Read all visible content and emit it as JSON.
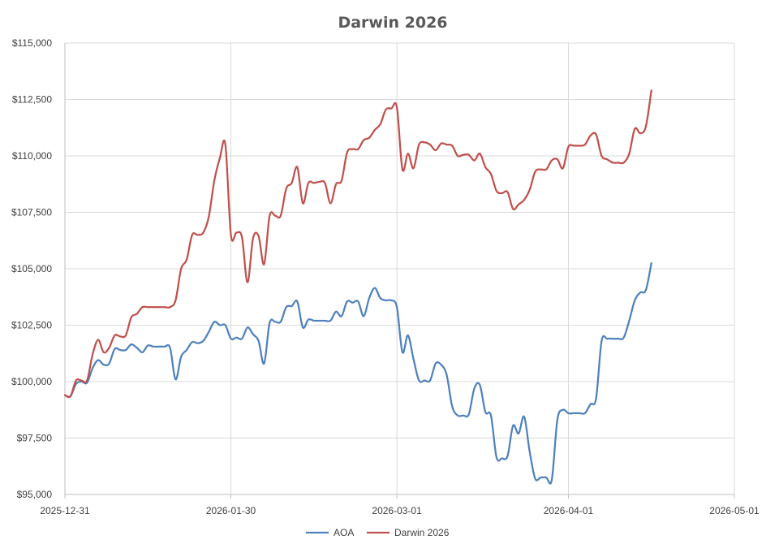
{
  "chart_data": {
    "type": "line",
    "title": "Darwin 2026",
    "xlabel": "",
    "ylabel": "",
    "x_ticks": [
      "2025-12-31",
      "2026-01-30",
      "2026-03-01",
      "2026-04-01",
      "2026-05-01"
    ],
    "x_range": [
      "2025-12-31",
      "2026-05-01"
    ],
    "y_ticks": [
      "$95,000",
      "$97,500",
      "$100,000",
      "$102,500",
      "$105,000",
      "$107,500",
      "$110,000",
      "$112,500",
      "$115,000"
    ],
    "ylim": [
      95000,
      115000
    ],
    "grid": true,
    "legend_position": "bottom",
    "series": [
      {
        "name": "AOA",
        "color": "#4f81bd",
        "points": [
          [
            "2025-12-31",
            99400
          ],
          [
            "2026-01-01",
            99350
          ],
          [
            "2026-01-02",
            99900
          ],
          [
            "2026-01-03",
            100000
          ],
          [
            "2026-01-04",
            99950
          ],
          [
            "2026-01-05",
            100600
          ],
          [
            "2026-01-06",
            100950
          ],
          [
            "2026-01-07",
            100750
          ],
          [
            "2026-01-08",
            100800
          ],
          [
            "2026-01-09",
            101450
          ],
          [
            "2026-01-10",
            101400
          ],
          [
            "2026-01-11",
            101400
          ],
          [
            "2026-01-12",
            101650
          ],
          [
            "2026-01-13",
            101500
          ],
          [
            "2026-01-14",
            101300
          ],
          [
            "2026-01-15",
            101600
          ],
          [
            "2026-01-16",
            101550
          ],
          [
            "2026-01-17",
            101550
          ],
          [
            "2026-01-18",
            101550
          ],
          [
            "2026-01-19",
            101500
          ],
          [
            "2026-01-20",
            100100
          ],
          [
            "2026-01-21",
            101100
          ],
          [
            "2026-01-22",
            101400
          ],
          [
            "2026-01-23",
            101750
          ],
          [
            "2026-01-24",
            101700
          ],
          [
            "2026-01-25",
            101800
          ],
          [
            "2026-01-26",
            102200
          ],
          [
            "2026-01-27",
            102650
          ],
          [
            "2026-01-28",
            102500
          ],
          [
            "2026-01-29",
            102500
          ],
          [
            "2026-01-30",
            101900
          ],
          [
            "2026-01-31",
            101950
          ],
          [
            "2026-02-01",
            101900
          ],
          [
            "2026-02-02",
            102400
          ],
          [
            "2026-02-03",
            102100
          ],
          [
            "2026-02-04",
            101800
          ],
          [
            "2026-02-05",
            100800
          ],
          [
            "2026-02-06",
            102600
          ],
          [
            "2026-02-07",
            102650
          ],
          [
            "2026-02-08",
            102650
          ],
          [
            "2026-02-09",
            103300
          ],
          [
            "2026-02-10",
            103350
          ],
          [
            "2026-02-11",
            103550
          ],
          [
            "2026-02-12",
            102400
          ],
          [
            "2026-02-13",
            102750
          ],
          [
            "2026-02-14",
            102700
          ],
          [
            "2026-02-15",
            102700
          ],
          [
            "2026-02-16",
            102700
          ],
          [
            "2026-02-17",
            102700
          ],
          [
            "2026-02-18",
            103100
          ],
          [
            "2026-02-19",
            102900
          ],
          [
            "2026-02-20",
            103550
          ],
          [
            "2026-02-21",
            103500
          ],
          [
            "2026-02-22",
            103550
          ],
          [
            "2026-02-23",
            102900
          ],
          [
            "2026-02-24",
            103700
          ],
          [
            "2026-02-25",
            104150
          ],
          [
            "2026-02-26",
            103700
          ],
          [
            "2026-02-27",
            103600
          ],
          [
            "2026-02-28",
            103600
          ],
          [
            "2026-03-01",
            103300
          ],
          [
            "2026-03-02",
            101300
          ],
          [
            "2026-03-03",
            102050
          ],
          [
            "2026-03-04",
            101000
          ],
          [
            "2026-03-05",
            100050
          ],
          [
            "2026-03-06",
            100050
          ],
          [
            "2026-03-07",
            100050
          ],
          [
            "2026-03-08",
            100800
          ],
          [
            "2026-03-09",
            100750
          ],
          [
            "2026-03-10",
            100300
          ],
          [
            "2026-03-11",
            98900
          ],
          [
            "2026-03-12",
            98500
          ],
          [
            "2026-03-13",
            98500
          ],
          [
            "2026-03-14",
            98550
          ],
          [
            "2026-03-15",
            99700
          ],
          [
            "2026-03-16",
            99850
          ],
          [
            "2026-03-17",
            98650
          ],
          [
            "2026-03-18",
            98500
          ],
          [
            "2026-03-19",
            96650
          ],
          [
            "2026-03-20",
            96600
          ],
          [
            "2026-03-21",
            96700
          ],
          [
            "2026-03-22",
            98050
          ],
          [
            "2026-03-23",
            97700
          ],
          [
            "2026-03-24",
            98450
          ],
          [
            "2026-03-25",
            96900
          ],
          [
            "2026-03-26",
            95700
          ],
          [
            "2026-03-27",
            95750
          ],
          [
            "2026-03-28",
            95750
          ],
          [
            "2026-03-29",
            95650
          ],
          [
            "2026-03-30",
            98300
          ],
          [
            "2026-03-31",
            98750
          ],
          [
            "2026-04-01",
            98600
          ],
          [
            "2026-04-02",
            98600
          ],
          [
            "2026-04-03",
            98600
          ],
          [
            "2026-04-04",
            98600
          ],
          [
            "2026-04-05",
            99000
          ],
          [
            "2026-04-06",
            99250
          ],
          [
            "2026-04-07",
            101800
          ],
          [
            "2026-04-08",
            101900
          ],
          [
            "2026-04-09",
            101900
          ],
          [
            "2026-04-10",
            101900
          ],
          [
            "2026-04-11",
            101950
          ],
          [
            "2026-04-12",
            102700
          ],
          [
            "2026-04-13",
            103600
          ],
          [
            "2026-04-14",
            103950
          ],
          [
            "2026-04-15",
            104050
          ],
          [
            "2026-04-16",
            105250
          ]
        ]
      },
      {
        "name": "Darwin 2026",
        "color": "#c0504d",
        "points": [
          [
            "2025-12-31",
            99400
          ],
          [
            "2026-01-01",
            99350
          ],
          [
            "2026-01-02",
            100050
          ],
          [
            "2026-01-03",
            100050
          ],
          [
            "2026-01-04",
            100050
          ],
          [
            "2026-01-05",
            101200
          ],
          [
            "2026-01-06",
            101850
          ],
          [
            "2026-01-07",
            101300
          ],
          [
            "2026-01-08",
            101500
          ],
          [
            "2026-01-09",
            102050
          ],
          [
            "2026-01-10",
            102000
          ],
          [
            "2026-01-11",
            102050
          ],
          [
            "2026-01-12",
            102850
          ],
          [
            "2026-01-13",
            103000
          ],
          [
            "2026-01-14",
            103300
          ],
          [
            "2026-01-15",
            103300
          ],
          [
            "2026-01-16",
            103300
          ],
          [
            "2026-01-17",
            103300
          ],
          [
            "2026-01-18",
            103300
          ],
          [
            "2026-01-19",
            103300
          ],
          [
            "2026-01-20",
            103600
          ],
          [
            "2026-01-21",
            105000
          ],
          [
            "2026-01-22",
            105400
          ],
          [
            "2026-01-23",
            106500
          ],
          [
            "2026-01-24",
            106500
          ],
          [
            "2026-01-25",
            106600
          ],
          [
            "2026-01-26",
            107300
          ],
          [
            "2026-01-27",
            108900
          ],
          [
            "2026-01-28",
            109900
          ],
          [
            "2026-01-29",
            110500
          ],
          [
            "2026-01-30",
            106500
          ],
          [
            "2026-01-31",
            106600
          ],
          [
            "2026-02-01",
            106400
          ],
          [
            "2026-02-02",
            104400
          ],
          [
            "2026-02-03",
            106350
          ],
          [
            "2026-02-04",
            106450
          ],
          [
            "2026-02-05",
            105200
          ],
          [
            "2026-02-06",
            107350
          ],
          [
            "2026-02-07",
            107350
          ],
          [
            "2026-02-08",
            107350
          ],
          [
            "2026-02-09",
            108550
          ],
          [
            "2026-02-10",
            108800
          ],
          [
            "2026-02-11",
            109500
          ],
          [
            "2026-02-12",
            107900
          ],
          [
            "2026-02-13",
            108800
          ],
          [
            "2026-02-14",
            108800
          ],
          [
            "2026-02-15",
            108850
          ],
          [
            "2026-02-16",
            108800
          ],
          [
            "2026-02-17",
            107900
          ],
          [
            "2026-02-18",
            108750
          ],
          [
            "2026-02-19",
            108900
          ],
          [
            "2026-02-20",
            110150
          ],
          [
            "2026-02-21",
            110300
          ],
          [
            "2026-02-22",
            110300
          ],
          [
            "2026-02-23",
            110700
          ],
          [
            "2026-02-24",
            110800
          ],
          [
            "2026-02-25",
            111150
          ],
          [
            "2026-02-26",
            111400
          ],
          [
            "2026-02-27",
            112050
          ],
          [
            "2026-02-28",
            112100
          ],
          [
            "2026-03-01",
            112150
          ],
          [
            "2026-03-02",
            109400
          ],
          [
            "2026-03-03",
            110100
          ],
          [
            "2026-03-04",
            109450
          ],
          [
            "2026-03-05",
            110500
          ],
          [
            "2026-03-06",
            110600
          ],
          [
            "2026-03-07",
            110500
          ],
          [
            "2026-03-08",
            110250
          ],
          [
            "2026-03-09",
            110550
          ],
          [
            "2026-03-10",
            110500
          ],
          [
            "2026-03-11",
            110450
          ],
          [
            "2026-03-12",
            110000
          ],
          [
            "2026-03-13",
            110050
          ],
          [
            "2026-03-14",
            110050
          ],
          [
            "2026-03-15",
            109800
          ],
          [
            "2026-03-16",
            110100
          ],
          [
            "2026-03-17",
            109500
          ],
          [
            "2026-03-18",
            109200
          ],
          [
            "2026-03-19",
            108450
          ],
          [
            "2026-03-20",
            108350
          ],
          [
            "2026-03-21",
            108400
          ],
          [
            "2026-03-22",
            107650
          ],
          [
            "2026-03-23",
            107850
          ],
          [
            "2026-03-24",
            108050
          ],
          [
            "2026-03-25",
            108500
          ],
          [
            "2026-03-26",
            109300
          ],
          [
            "2026-03-27",
            109400
          ],
          [
            "2026-03-28",
            109400
          ],
          [
            "2026-03-29",
            109800
          ],
          [
            "2026-03-30",
            109850
          ],
          [
            "2026-03-31",
            109450
          ],
          [
            "2026-04-01",
            110400
          ],
          [
            "2026-04-02",
            110450
          ],
          [
            "2026-04-03",
            110450
          ],
          [
            "2026-04-04",
            110500
          ],
          [
            "2026-04-05",
            110900
          ],
          [
            "2026-04-06",
            110950
          ],
          [
            "2026-04-07",
            110000
          ],
          [
            "2026-04-08",
            109850
          ],
          [
            "2026-04-09",
            109700
          ],
          [
            "2026-04-10",
            109700
          ],
          [
            "2026-04-11",
            109700
          ],
          [
            "2026-04-12",
            110100
          ],
          [
            "2026-04-13",
            111200
          ],
          [
            "2026-04-14",
            111000
          ],
          [
            "2026-04-15",
            111300
          ],
          [
            "2026-04-16",
            112900
          ]
        ]
      }
    ]
  }
}
